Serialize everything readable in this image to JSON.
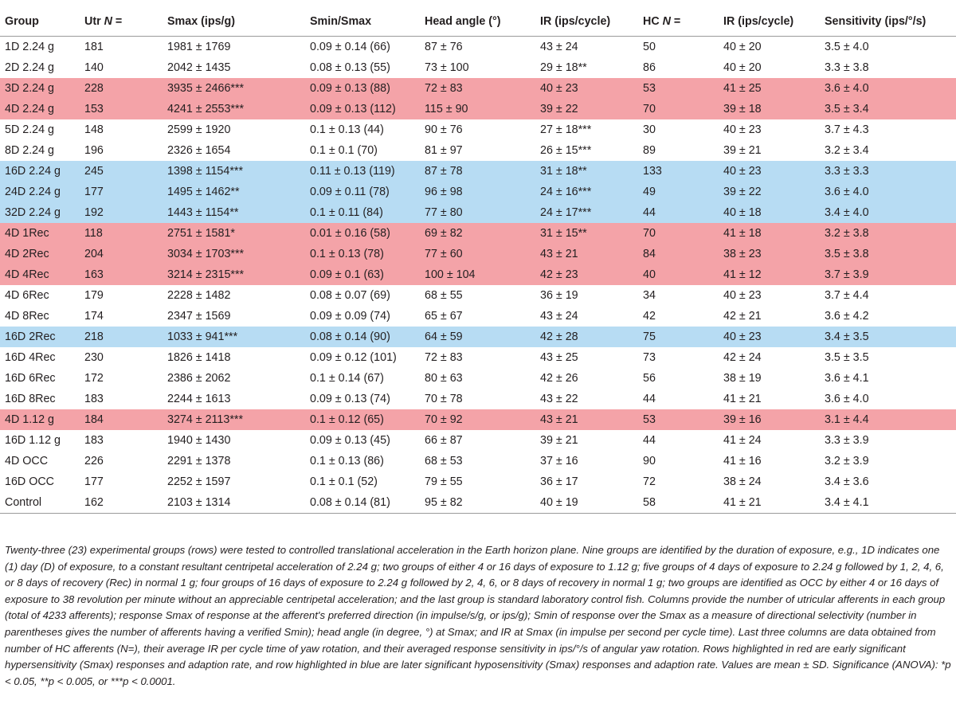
{
  "table": {
    "columns": [
      {
        "pre": "Group",
        "em": "",
        "post": ""
      },
      {
        "pre": "Utr ",
        "em": "N",
        "post": " ="
      },
      {
        "pre": "Smax (ips/g)",
        "em": "",
        "post": ""
      },
      {
        "pre": "Smin/Smax",
        "em": "",
        "post": ""
      },
      {
        "pre": "Head angle (°)",
        "em": "",
        "post": ""
      },
      {
        "pre": "IR (ips/cycle)",
        "em": "",
        "post": ""
      },
      {
        "pre": "HC ",
        "em": "N",
        "post": " ="
      },
      {
        "pre": "IR (ips/cycle)",
        "em": "",
        "post": ""
      },
      {
        "pre": "Sensitivity (ips/°/s)",
        "em": "",
        "post": ""
      }
    ],
    "rows": [
      {
        "highlight": "none",
        "cells": [
          "1D 2.24 g",
          "181",
          "1981 ± 1769",
          "0.09 ± 0.14 (66)",
          "87 ± 76",
          "43 ± 24",
          "50",
          "40 ± 20",
          "3.5 ± 4.0"
        ]
      },
      {
        "highlight": "none",
        "cells": [
          "2D 2.24 g",
          "140",
          "2042 ± 1435",
          "0.08 ± 0.13 (55)",
          "73 ± 100",
          "29 ± 18**",
          "86",
          "40 ± 20",
          "3.3 ± 3.8"
        ]
      },
      {
        "highlight": "red",
        "cells": [
          "3D 2.24 g",
          "228",
          "3935 ± 2466***",
          "0.09 ± 0.13 (88)",
          "72 ± 83",
          "40 ± 23",
          "53",
          "41 ± 25",
          "3.6 ± 4.0"
        ]
      },
      {
        "highlight": "red",
        "cells": [
          "4D 2.24 g",
          "153",
          "4241 ± 2553***",
          "0.09 ± 0.13 (112)",
          "115 ± 90",
          "39 ± 22",
          "70",
          "39 ± 18",
          "3.5 ± 3.4"
        ]
      },
      {
        "highlight": "none",
        "cells": [
          "5D 2.24 g",
          "148",
          "2599 ± 1920",
          "0.1 ± 0.13 (44)",
          "90 ± 76",
          "27 ± 18***",
          "30",
          "40 ± 23",
          "3.7 ± 4.3"
        ]
      },
      {
        "highlight": "none",
        "cells": [
          "8D 2.24 g",
          "196",
          "2326 ± 1654",
          "0.1 ± 0.1 (70)",
          "81 ± 97",
          "26 ± 15***",
          "89",
          "39 ± 21",
          "3.2 ± 3.4"
        ]
      },
      {
        "highlight": "blue",
        "cells": [
          "16D 2.24 g",
          "245",
          "1398 ± 1154***",
          "0.11 ± 0.13 (119)",
          "87 ± 78",
          "31 ± 18**",
          "133",
          "40 ± 23",
          "3.3 ± 3.3"
        ]
      },
      {
        "highlight": "blue",
        "cells": [
          "24D 2.24 g",
          "177",
          "1495 ± 1462**",
          "0.09 ± 0.11 (78)",
          "96 ± 98",
          "24 ± 16***",
          "49",
          "39 ± 22",
          "3.6 ± 4.0"
        ]
      },
      {
        "highlight": "blue",
        "cells": [
          "32D 2.24 g",
          "192",
          "1443 ± 1154**",
          "0.1 ± 0.11 (84)",
          "77 ± 80",
          "24 ± 17***",
          "44",
          "40 ± 18",
          "3.4 ± 4.0"
        ]
      },
      {
        "highlight": "red",
        "cells": [
          "4D 1Rec",
          "118",
          "2751 ± 1581*",
          "0.01 ± 0.16 (58)",
          "69 ± 82",
          "31 ± 15**",
          "70",
          "41 ± 18",
          "3.2 ± 3.8"
        ]
      },
      {
        "highlight": "red",
        "cells": [
          "4D 2Rec",
          "204",
          "3034 ± 1703***",
          "0.1 ± 0.13 (78)",
          "77 ± 60",
          "43 ± 21",
          "84",
          "38 ± 23",
          "3.5 ± 3.8"
        ]
      },
      {
        "highlight": "red",
        "cells": [
          "4D 4Rec",
          "163",
          "3214 ± 2315***",
          "0.09 ± 0.1 (63)",
          "100 ± 104",
          "42 ± 23",
          "40",
          "41 ± 12",
          "3.7 ± 3.9"
        ]
      },
      {
        "highlight": "none",
        "cells": [
          "4D 6Rec",
          "179",
          "2228 ± 1482",
          "0.08 ± 0.07 (69)",
          "68 ± 55",
          "36 ± 19",
          "34",
          "40 ± 23",
          "3.7 ± 4.4"
        ]
      },
      {
        "highlight": "none",
        "cells": [
          "4D 8Rec",
          "174",
          "2347 ± 1569",
          "0.09 ± 0.09 (74)",
          "65 ± 67",
          "43 ± 24",
          "42",
          "42 ± 21",
          "3.6 ± 4.2"
        ]
      },
      {
        "highlight": "blue",
        "cells": [
          "16D 2Rec",
          "218",
          "1033 ± 941***",
          "0.08 ± 0.14 (90)",
          "64 ± 59",
          "42 ± 28",
          "75",
          "40 ± 23",
          "3.4 ± 3.5"
        ]
      },
      {
        "highlight": "none",
        "cells": [
          "16D 4Rec",
          "230",
          "1826 ± 1418",
          "0.09 ± 0.12 (101)",
          "72 ± 83",
          "43 ± 25",
          "73",
          "42 ± 24",
          "3.5 ± 3.5"
        ]
      },
      {
        "highlight": "none",
        "cells": [
          "16D 6Rec",
          "172",
          "2386 ± 2062",
          "0.1 ± 0.14 (67)",
          "80 ± 63",
          "42 ± 26",
          "56",
          "38 ± 19",
          "3.6 ± 4.1"
        ]
      },
      {
        "highlight": "none",
        "cells": [
          "16D 8Rec",
          "183",
          "2244 ± 1613",
          "0.09 ± 0.13 (74)",
          "70 ± 78",
          "43 ± 22",
          "44",
          "41 ± 21",
          "3.6 ± 4.0"
        ]
      },
      {
        "highlight": "red",
        "cells": [
          "4D 1.12 g",
          "184",
          "3274 ± 2113***",
          "0.1 ± 0.12 (65)",
          "70 ± 92",
          "43 ± 21",
          "53",
          "39 ± 16",
          "3.1 ± 4.4"
        ]
      },
      {
        "highlight": "none",
        "cells": [
          "16D 1.12 g",
          "183",
          "1940 ± 1430",
          "0.09 ± 0.13 (45)",
          "66 ± 87",
          "39 ± 21",
          "44",
          "41 ± 24",
          "3.3 ± 3.9"
        ]
      },
      {
        "highlight": "none",
        "cells": [
          "4D OCC",
          "226",
          "2291 ± 1378",
          "0.1 ± 0.13 (86)",
          "68 ± 53",
          "37 ± 16",
          "90",
          "41 ± 16",
          "3.2 ± 3.9"
        ]
      },
      {
        "highlight": "none",
        "cells": [
          "16D OCC",
          "177",
          "2252 ± 1597",
          "0.1 ± 0.1 (52)",
          "79 ± 55",
          "36 ± 17",
          "72",
          "38 ± 24",
          "3.4 ± 3.6"
        ]
      },
      {
        "highlight": "none",
        "cells": [
          "Control",
          "162",
          "2103 ± 1314",
          "0.08 ± 0.14 (81)",
          "95 ± 82",
          "40 ± 19",
          "58",
          "41 ± 21",
          "3.4 ± 4.1"
        ]
      }
    ]
  },
  "footnote": "Twenty-three (23) experimental groups (rows) were tested to controlled translational acceleration in the Earth horizon plane. Nine groups are identified by the duration of exposure, e.g., 1D indicates one (1) day (D) of exposure, to a constant resultant centripetal acceleration of 2.24 g; two groups of either 4 or 16 days of exposure to 1.12 g; five groups of 4 days of exposure to 2.24 g followed by 1, 2, 4, 6, or 8 days of recovery (Rec) in normal 1 g; four groups of 16 days of exposure to 2.24 g followed by 2, 4, 6, or 8 days of recovery in normal 1 g; two groups are identified as OCC by either 4 or 16 days of exposure to 38 revolution per minute without an appreciable centripetal acceleration; and the last group is standard laboratory control fish. Columns provide the number of utricular afferents in each group (total of 4233 afferents); response Smax of response at the afferent's preferred direction (in impulse/s/g, or ips/g); Smin of response over the Smax as a measure of directional selectivity (number in parentheses gives the number of afferents having a verified Smin); head angle (in degree, °) at Smax; and IR at Smax (in impulse per second per cycle time). Last three columns are data obtained from number of HC afferents (N=), their average IR per cycle time of yaw rotation, and their averaged response sensitivity in ips/°/s of angular yaw rotation. Rows highlighted in red are early significant hypersensitivity (Smax) responses and adaption rate, and row highlighted in blue are later significant hyposensitivity (Smax) responses and adaption rate. Values are mean ± SD. Significance (ANOVA): *p < 0.05, **p < 0.005, or ***p < 0.0001.",
  "colors": {
    "red_highlight": "#f4a3a8",
    "blue_highlight": "#b7dcf3",
    "text": "#231f20"
  }
}
